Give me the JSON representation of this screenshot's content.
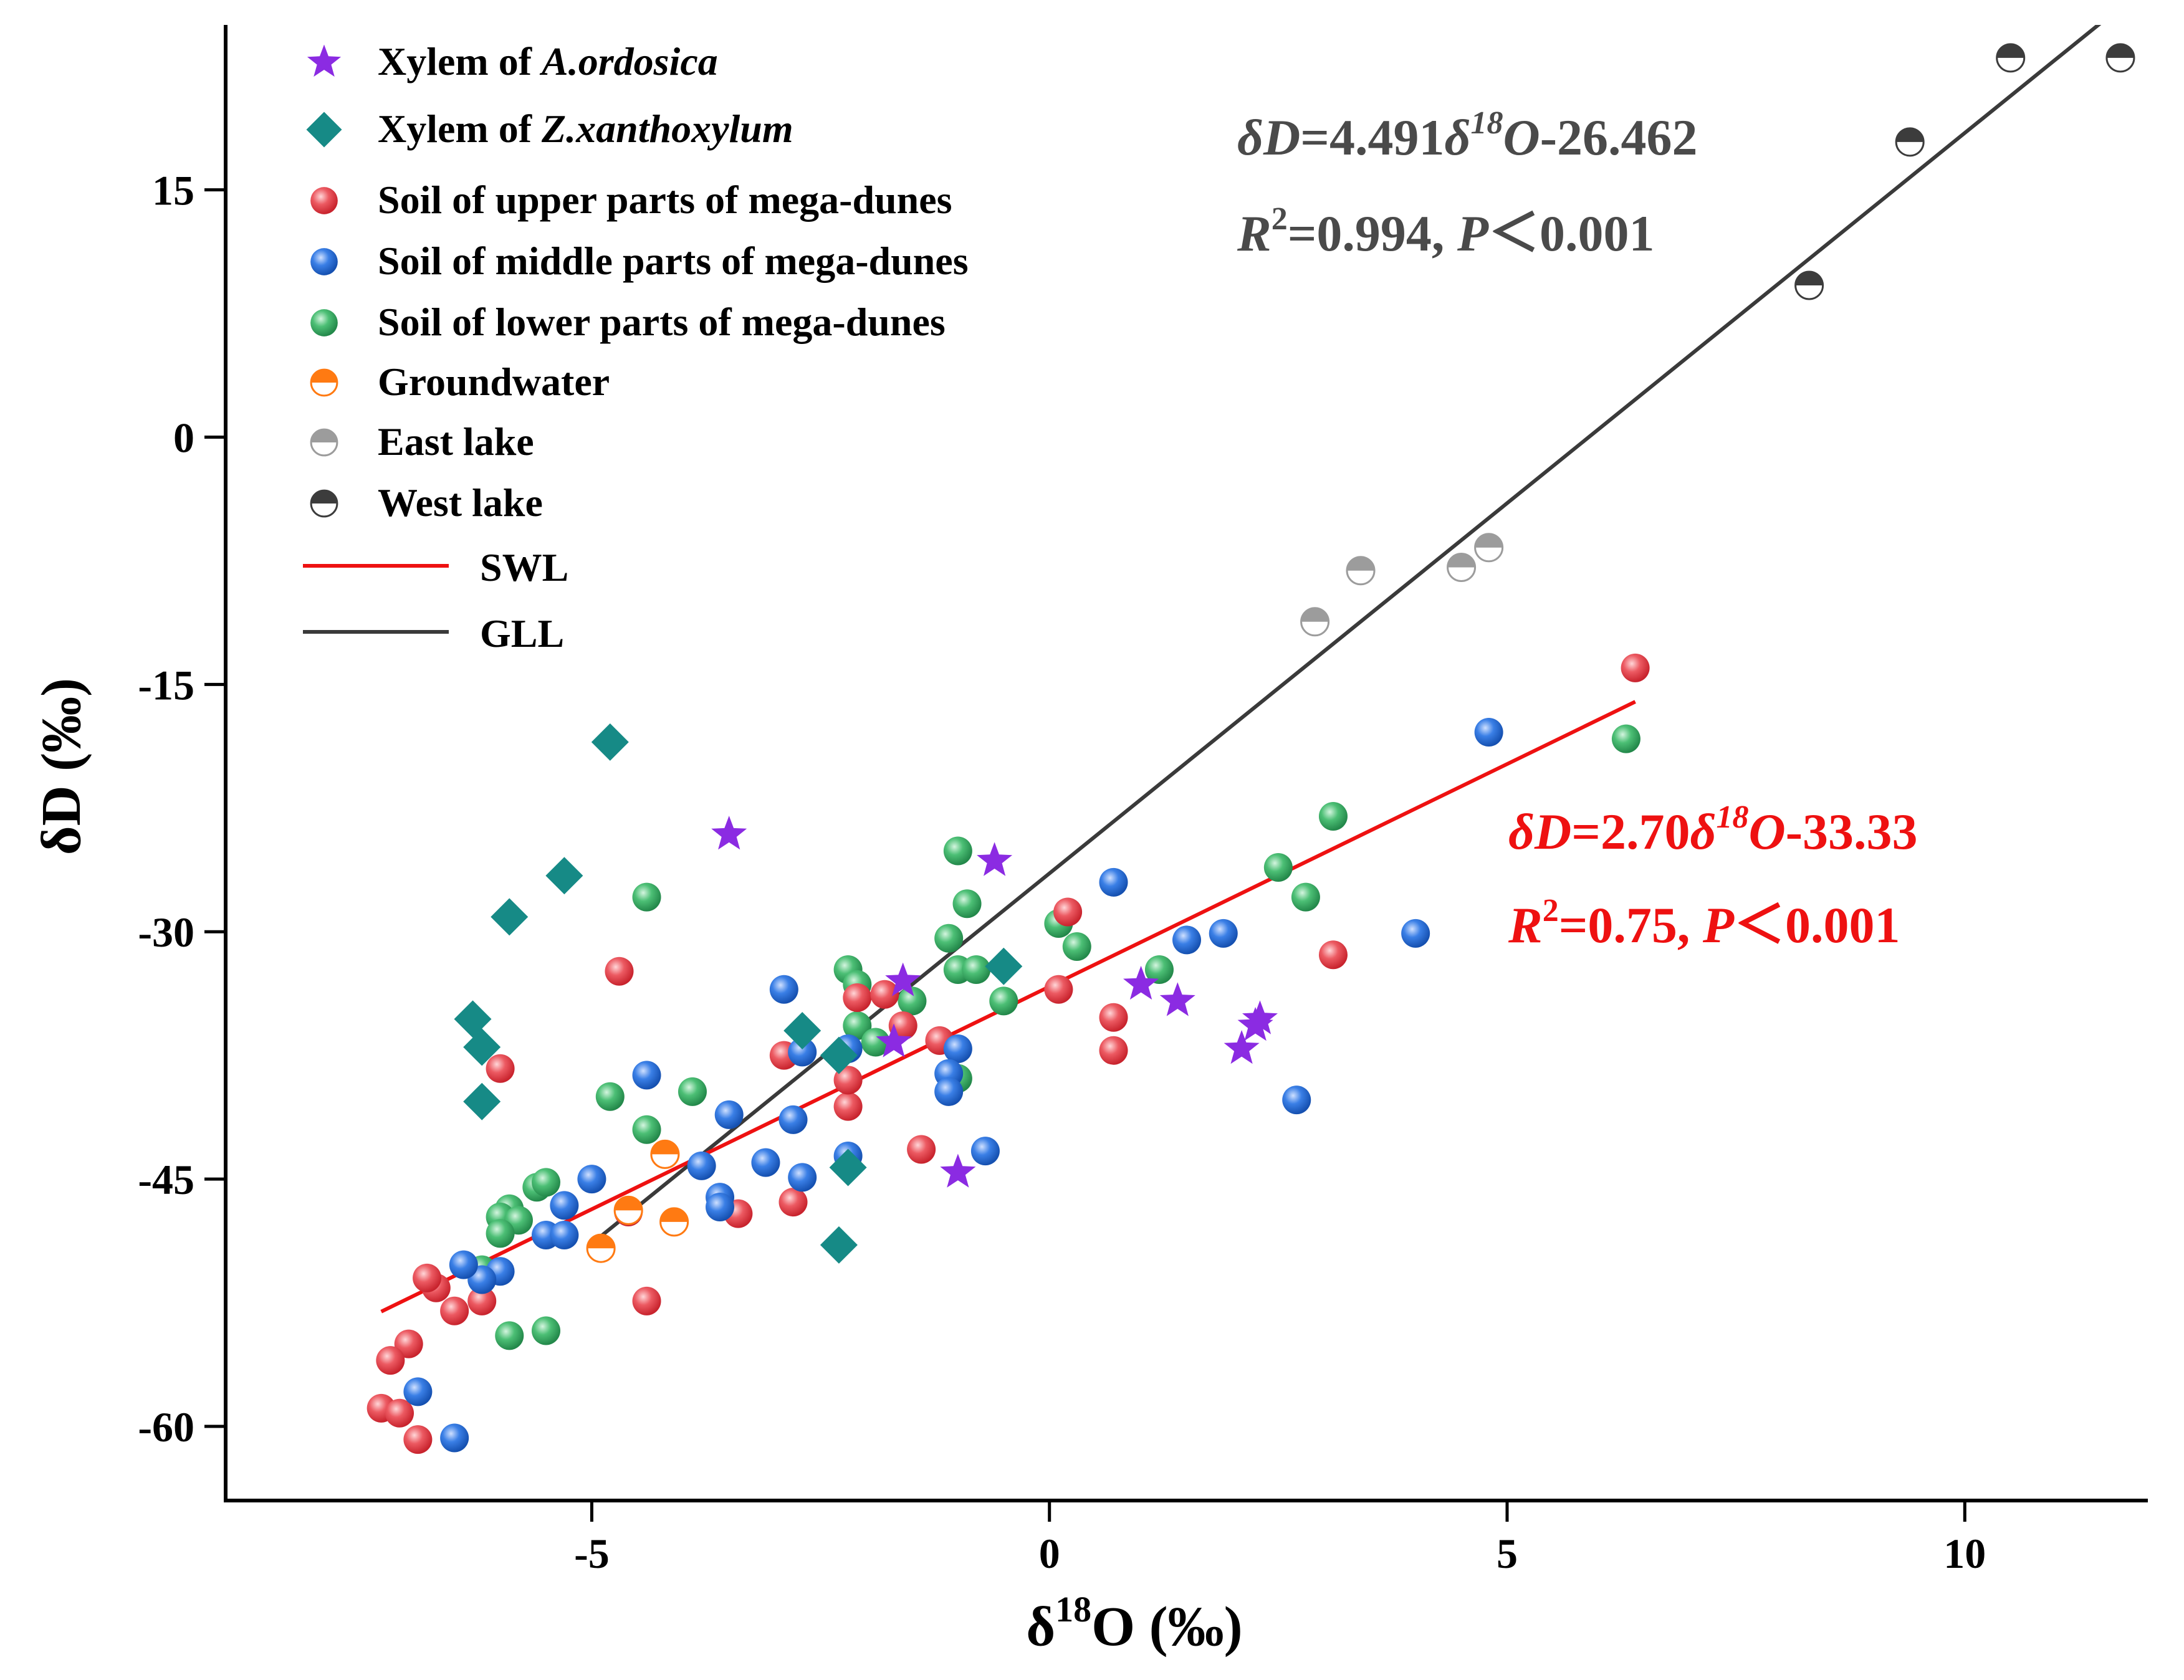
{
  "colors": {
    "xylem_a": "#8b2be2",
    "xylem_z": "#168a86",
    "soil_upper": "#e8404a",
    "soil_middle": "#1f6bd8",
    "soil_lower": "#3aad62",
    "groundwater": "#ff7a12",
    "east_lake": "#9c9c9c",
    "west_lake": "#3c3c3c",
    "swl": "#ee1111",
    "gll": "#3a3a3a",
    "eq_gll_text": "#4a4a4a",
    "eq_swl_text": "#ee1111",
    "axis": "#000000"
  },
  "legend": [
    {
      "key": "xylem_a",
      "prefix": "Xylem of ",
      "italic": "A.ordosica"
    },
    {
      "key": "xylem_z",
      "prefix": "Xylem of ",
      "italic": "Z.xanthoxylum"
    },
    {
      "key": "soil_upper",
      "prefix": "Soil of upper parts of mega-dunes",
      "italic": ""
    },
    {
      "key": "soil_middle",
      "prefix": "Soil of middle parts of mega-dunes",
      "italic": ""
    },
    {
      "key": "soil_lower",
      "prefix": "Soil of lower parts of mega-dunes",
      "italic": ""
    },
    {
      "key": "groundwater",
      "prefix": "Groundwater",
      "italic": ""
    },
    {
      "key": "east_lake",
      "prefix": "East lake",
      "italic": ""
    },
    {
      "key": "west_lake",
      "prefix": "West lake",
      "italic": ""
    },
    {
      "key": "swl",
      "prefix": "SWL",
      "italic": ""
    },
    {
      "key": "gll",
      "prefix": "GLL",
      "italic": ""
    }
  ],
  "equations": {
    "gll": {
      "lhs": "δD",
      "mid": "=4.491",
      "delta": "δ",
      "sup": "18",
      "o": "O",
      "rest": "-26.462",
      "r2_r": "R",
      "r2_sup": "2",
      "r2_val": "=0.994, ",
      "p": "P",
      "p_rest": "＜0.001"
    },
    "swl": {
      "lhs": "δD",
      "mid": "=2.70",
      "delta": "δ",
      "sup": "18",
      "o": "O",
      "rest": "-33.33",
      "r2_r": "R",
      "r2_sup": "2",
      "r2_val": "=0.75, ",
      "p": "P",
      "p_rest": "＜0.001"
    }
  },
  "chart_data": {
    "type": "scatter",
    "xlabel": {
      "pre": "δ",
      "sup": "18",
      "post": "O (‰)"
    },
    "ylabel": "δD (‰)",
    "xlim": [
      -9,
      12
    ],
    "ylim": [
      -64.5,
      25
    ],
    "xticks": [
      -5,
      0,
      5,
      10
    ],
    "yticks": [
      -60,
      -45,
      -30,
      -15,
      0,
      15
    ],
    "series": {
      "xylem_a": [
        [
          -3.5,
          -24.1
        ],
        [
          -0.6,
          -25.7
        ],
        [
          -1.7,
          -36.7
        ],
        [
          -1.6,
          -33.0
        ],
        [
          -1.0,
          -44.6
        ],
        [
          1.0,
          -33.2
        ],
        [
          1.4,
          -34.2
        ],
        [
          2.1,
          -37.1
        ],
        [
          2.3,
          -35.3
        ],
        [
          2.25,
          -35.7
        ]
      ],
      "xylem_z": [
        [
          -4.8,
          -18.5
        ],
        [
          -5.3,
          -26.6
        ],
        [
          -5.9,
          -29.1
        ],
        [
          -6.3,
          -35.3
        ],
        [
          -6.2,
          -37.0
        ],
        [
          -6.2,
          -40.3
        ],
        [
          -2.7,
          -36.0
        ],
        [
          -2.3,
          -37.5
        ],
        [
          -0.5,
          -32.1
        ],
        [
          -2.2,
          -44.3
        ],
        [
          -2.3,
          -49.0
        ]
      ],
      "soil_upper": [
        [
          6.4,
          -14.0
        ],
        [
          0.2,
          -28.8
        ],
        [
          0.1,
          -33.5
        ],
        [
          0.7,
          -35.2
        ],
        [
          0.7,
          -37.2
        ],
        [
          3.1,
          -31.4
        ],
        [
          -4.7,
          -32.4
        ],
        [
          -6.0,
          -38.3
        ],
        [
          -2.2,
          -40.6
        ],
        [
          -2.2,
          -39.0
        ],
        [
          -2.9,
          -37.5
        ],
        [
          -2.1,
          -34.0
        ],
        [
          -1.8,
          -33.8
        ],
        [
          -1.6,
          -35.7
        ],
        [
          -1.2,
          -36.6
        ],
        [
          -1.4,
          -43.2
        ],
        [
          -2.8,
          -46.4
        ],
        [
          -3.4,
          -47.1
        ],
        [
          -4.6,
          -47.0
        ],
        [
          -4.4,
          -52.4
        ],
        [
          -6.2,
          -52.4
        ],
        [
          -6.5,
          -53.0
        ],
        [
          -6.7,
          -51.6
        ],
        [
          -6.8,
          -51.0
        ],
        [
          -7.0,
          -55.0
        ],
        [
          -7.2,
          -56.0
        ],
        [
          -7.3,
          -58.9
        ],
        [
          -7.1,
          -59.2
        ],
        [
          -6.9,
          -60.8
        ]
      ],
      "soil_middle": [
        [
          4.8,
          -17.9
        ],
        [
          0.7,
          -27.0
        ],
        [
          1.5,
          -30.5
        ],
        [
          1.9,
          -30.1
        ],
        [
          4.0,
          -30.1
        ],
        [
          2.7,
          -40.2
        ],
        [
          -2.9,
          -33.5
        ],
        [
          -2.7,
          -37.3
        ],
        [
          -2.8,
          -41.4
        ],
        [
          -3.1,
          -44.0
        ],
        [
          -2.7,
          -44.9
        ],
        [
          -3.5,
          -41.1
        ],
        [
          -3.8,
          -44.2
        ],
        [
          -3.6,
          -46.1
        ],
        [
          -3.6,
          -46.7
        ],
        [
          -4.4,
          -38.7
        ],
        [
          -5.0,
          -45.0
        ],
        [
          -5.3,
          -46.6
        ],
        [
          -5.5,
          -48.4
        ],
        [
          -5.3,
          -48.4
        ],
        [
          -6.0,
          -50.6
        ],
        [
          -6.2,
          -51.1
        ],
        [
          -6.4,
          -50.2
        ],
        [
          -6.9,
          -57.9
        ],
        [
          -6.5,
          -60.7
        ],
        [
          -2.2,
          -37.1
        ],
        [
          -2.2,
          -43.6
        ],
        [
          -1.0,
          -37.1
        ],
        [
          -1.1,
          -38.6
        ],
        [
          -1.1,
          -39.7
        ],
        [
          -0.7,
          -43.3
        ]
      ],
      "soil_lower": [
        [
          6.3,
          -18.3
        ],
        [
          3.1,
          -23.0
        ],
        [
          2.5,
          -26.1
        ],
        [
          2.8,
          -27.9
        ],
        [
          0.1,
          -29.5
        ],
        [
          0.3,
          -30.9
        ],
        [
          1.2,
          -32.3
        ],
        [
          -1.0,
          -25.1
        ],
        [
          -0.9,
          -28.3
        ],
        [
          -1.1,
          -30.4
        ],
        [
          -1.0,
          -32.3
        ],
        [
          -0.8,
          -32.3
        ],
        [
          -0.5,
          -34.2
        ],
        [
          -1.5,
          -34.2
        ],
        [
          -2.2,
          -32.3
        ],
        [
          -2.1,
          -33.2
        ],
        [
          -2.1,
          -35.7
        ],
        [
          -1.9,
          -36.7
        ],
        [
          -1.0,
          -38.9
        ],
        [
          -3.9,
          -39.7
        ],
        [
          -4.4,
          -27.9
        ],
        [
          -4.8,
          -40.0
        ],
        [
          -4.4,
          -42.0
        ],
        [
          -5.6,
          -45.5
        ],
        [
          -5.5,
          -45.2
        ],
        [
          -5.9,
          -46.8
        ],
        [
          -6.0,
          -47.3
        ],
        [
          -5.8,
          -47.5
        ],
        [
          -6.0,
          -48.3
        ],
        [
          -6.2,
          -50.5
        ],
        [
          -5.9,
          -54.5
        ],
        [
          -5.5,
          -54.2
        ]
      ],
      "groundwater": [
        [
          -4.2,
          -43.5
        ],
        [
          -4.6,
          -46.9
        ],
        [
          -4.1,
          -47.6
        ],
        [
          -4.9,
          -49.2
        ]
      ],
      "east_lake": [
        [
          2.9,
          -11.2
        ],
        [
          3.4,
          -8.1
        ],
        [
          4.5,
          -7.9
        ],
        [
          4.8,
          -6.7
        ]
      ],
      "west_lake": [
        [
          8.3,
          9.2
        ],
        [
          9.4,
          17.9
        ],
        [
          10.5,
          23.0
        ],
        [
          11.7,
          23.0
        ]
      ]
    },
    "lines": {
      "swl": {
        "x": [
          -7.3,
          6.4
        ]
      },
      "gll": {
        "x": [
          -4.9,
          11.9
        ]
      }
    }
  }
}
